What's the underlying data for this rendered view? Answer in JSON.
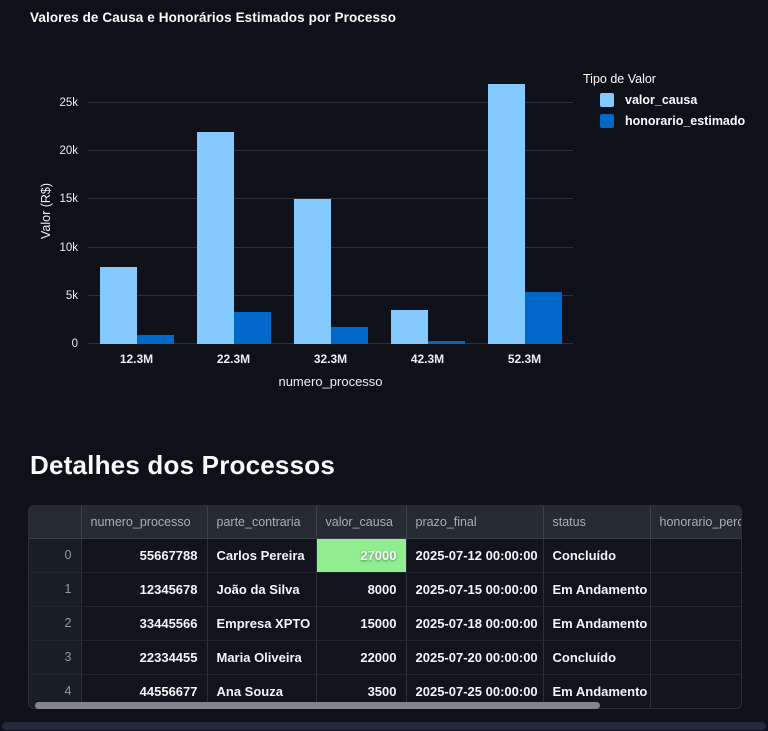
{
  "chart": {
    "title": "Valores de Causa e Honorários Estimados por Processo",
    "legend_title": "Tipo de Valor"
  },
  "chart_data": {
    "type": "bar",
    "title": "Valores de Causa e Honorários Estimados por Processo",
    "xlabel": "numero_processo",
    "ylabel": "Valor (R$)",
    "categories": [
      "12.3M",
      "22.3M",
      "32.3M",
      "42.3M",
      "52.3M"
    ],
    "series": [
      {
        "name": "valor_causa",
        "color": "#83C9FF",
        "values": [
          8000,
          22000,
          15000,
          3500,
          27000
        ]
      },
      {
        "name": "honorario_estimado",
        "color": "#0068C9",
        "values": [
          960,
          3300,
          1800,
          350,
          5400
        ]
      }
    ],
    "yticks": [
      {
        "value": 0,
        "label": "0"
      },
      {
        "value": 5000,
        "label": "5k"
      },
      {
        "value": 10000,
        "label": "10k"
      },
      {
        "value": 15000,
        "label": "15k"
      },
      {
        "value": 20000,
        "label": "20k"
      },
      {
        "value": 25000,
        "label": "25k"
      }
    ],
    "ylim": [
      0,
      27600
    ],
    "grid": "horizontal",
    "legend_position": "top-right",
    "legend_title": "Tipo de Valor"
  },
  "table_section": {
    "heading": "Detalhes dos Processos",
    "columns": [
      {
        "label": "",
        "align": "right",
        "kind": "index"
      },
      {
        "label": "numero_processo",
        "align": "right"
      },
      {
        "label": "parte_contraria",
        "align": "left"
      },
      {
        "label": "valor_causa",
        "align": "right"
      },
      {
        "label": "prazo_final",
        "align": "left"
      },
      {
        "label": "status",
        "align": "left"
      },
      {
        "label": "honorario_perc",
        "align": "left"
      }
    ],
    "rows": [
      [
        "0",
        "55667788",
        "Carlos Pereira",
        "27000",
        "2025-07-12 00:00:00",
        "Concluído",
        ""
      ],
      [
        "1",
        "12345678",
        "João da Silva",
        "8000",
        "2025-07-15 00:00:00",
        "Em Andamento",
        ""
      ],
      [
        "2",
        "33445566",
        "Empresa XPTO",
        "15000",
        "2025-07-18 00:00:00",
        "Em Andamento",
        ""
      ],
      [
        "3",
        "22334455",
        "Maria Oliveira",
        "22000",
        "2025-07-20 00:00:00",
        "Concluído",
        ""
      ],
      [
        "4",
        "44556677",
        "Ana Souza",
        "3500",
        "2025-07-25 00:00:00",
        "Em Andamento",
        ""
      ]
    ],
    "highlight": {
      "row": 0,
      "col": 3,
      "color": "#90EE90"
    }
  }
}
